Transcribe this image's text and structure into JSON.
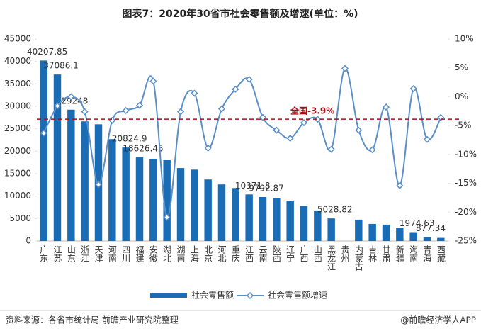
{
  "chart_data": {
    "type": "bar-line",
    "title": "图表7：2020年30省市社会零售额及增速(单位：%)",
    "categories": [
      "广东",
      "江苏",
      "山东",
      "浙江",
      "天津",
      "河南",
      "四川",
      "福建",
      "安徽",
      "湖北",
      "湖南",
      "上海",
      "北京",
      "河北",
      "重庆",
      "江西",
      "云南",
      "陕西",
      "辽宁",
      "广西",
      "山西",
      "黑龙江",
      "贵州",
      "内蒙古",
      "吉林",
      "甘肃",
      "新疆",
      "海南",
      "青海",
      "西藏"
    ],
    "series": [
      {
        "name": "社会零售额",
        "color": "#1a6db4",
        "type": "bar",
        "values": [
          40207.85,
          37086.1,
          29248,
          26650,
          26000,
          22700,
          20824.9,
          18626.45,
          18300,
          18000,
          16250,
          15900,
          13700,
          12600,
          11800,
          10371.8,
          9792.87,
          9600,
          9000,
          7800,
          6800,
          5028.82,
          null,
          4750,
          3800,
          3650,
          3000,
          1974.63,
          877.34,
          700
        ],
        "value_labels": [
          "40207.85",
          "37086.1",
          "29248",
          null,
          null,
          null,
          "20824.9",
          "18626.45",
          null,
          null,
          null,
          null,
          null,
          null,
          null,
          "10371.8",
          "9792.87",
          null,
          null,
          null,
          null,
          "5028.82",
          null,
          null,
          null,
          null,
          null,
          "1974.63",
          "877.34",
          null
        ]
      },
      {
        "name": "社会零售额增速",
        "color": "#5b8fc7",
        "type": "line",
        "axis": "y2",
        "values": [
          -6.3,
          -1.6,
          0,
          -2.6,
          -15.2,
          -4.1,
          -2.4,
          -1.5,
          2.7,
          -20.9,
          -2.6,
          0.6,
          -8.9,
          -2.1,
          1.3,
          3.0,
          -3.6,
          -5.8,
          -7.2,
          -4.5,
          -3.9,
          -9.1,
          4.9,
          -5.8,
          -9.2,
          -1.8,
          -15.4,
          1.4,
          -7.4,
          -3.6
        ]
      }
    ],
    "reference": {
      "value": -3.9,
      "label": "全国-3.9%",
      "color": "#a50f15"
    },
    "ylim": [
      0,
      45000
    ],
    "yticks": [
      0,
      5000,
      10000,
      15000,
      20000,
      25000,
      30000,
      35000,
      40000,
      45000
    ],
    "y2lim": [
      -25,
      10
    ],
    "y2ticks": [
      {
        "value": -25,
        "label": "-25%"
      },
      {
        "value": -20,
        "label": "-20%"
      },
      {
        "value": -15,
        "label": "-15%"
      },
      {
        "value": -10,
        "label": "-10%"
      },
      {
        "value": -5,
        "label": "-5%"
      },
      {
        "value": 0,
        "label": "0%"
      },
      {
        "value": 5,
        "label": "5%"
      },
      {
        "value": 10,
        "label": "10%"
      }
    ],
    "source": "资料来源：各省市统计局 前瞻产业研究院整理",
    "credit": "@前瞻经济学人APP"
  }
}
